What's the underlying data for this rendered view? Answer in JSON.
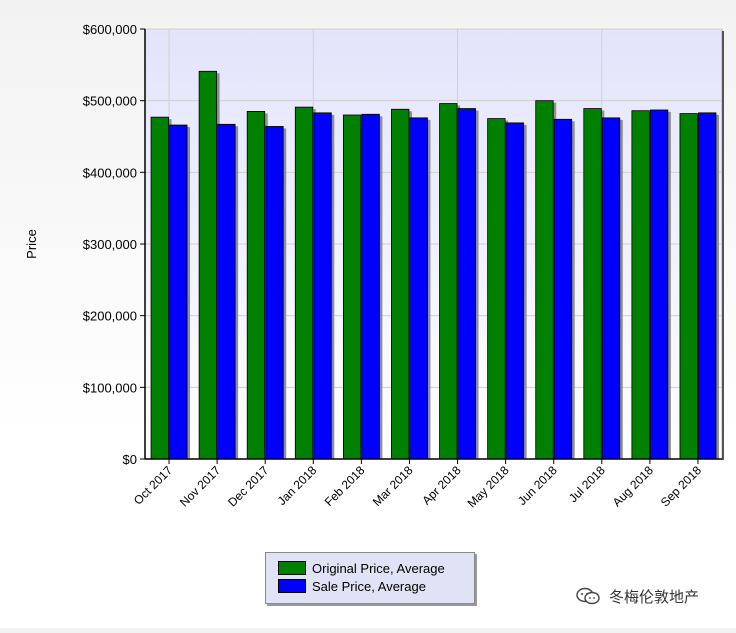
{
  "chart_data": {
    "type": "bar",
    "ylabel": "Price",
    "xlabel": "",
    "title": "",
    "ylim": [
      0,
      600000
    ],
    "yticks": [
      "$0",
      "$100,000",
      "$200,000",
      "$300,000",
      "$400,000",
      "$500,000",
      "$600,000"
    ],
    "categories": [
      "Oct 2017",
      "Nov 2017",
      "Dec 2017",
      "Jan 2018",
      "Feb 2018",
      "Mar 2018",
      "Apr 2018",
      "May 2018",
      "Jun 2018",
      "Jul 2018",
      "Aug 2018",
      "Sep 2018"
    ],
    "series": [
      {
        "name": "Original Price, Average",
        "color": "#008000",
        "values": [
          477000,
          541000,
          485000,
          491000,
          480000,
          488000,
          496000,
          475000,
          500000,
          489000,
          486000,
          482000
        ]
      },
      {
        "name": "Sale Price, Average",
        "color": "#0000ff",
        "values": [
          466000,
          467000,
          464000,
          483000,
          481000,
          476000,
          489000,
          469000,
          474000,
          476000,
          487000,
          483000
        ]
      }
    ],
    "grid": true,
    "legend": "bottom-center"
  },
  "watermark": {
    "text": "冬梅伦敦地产"
  }
}
